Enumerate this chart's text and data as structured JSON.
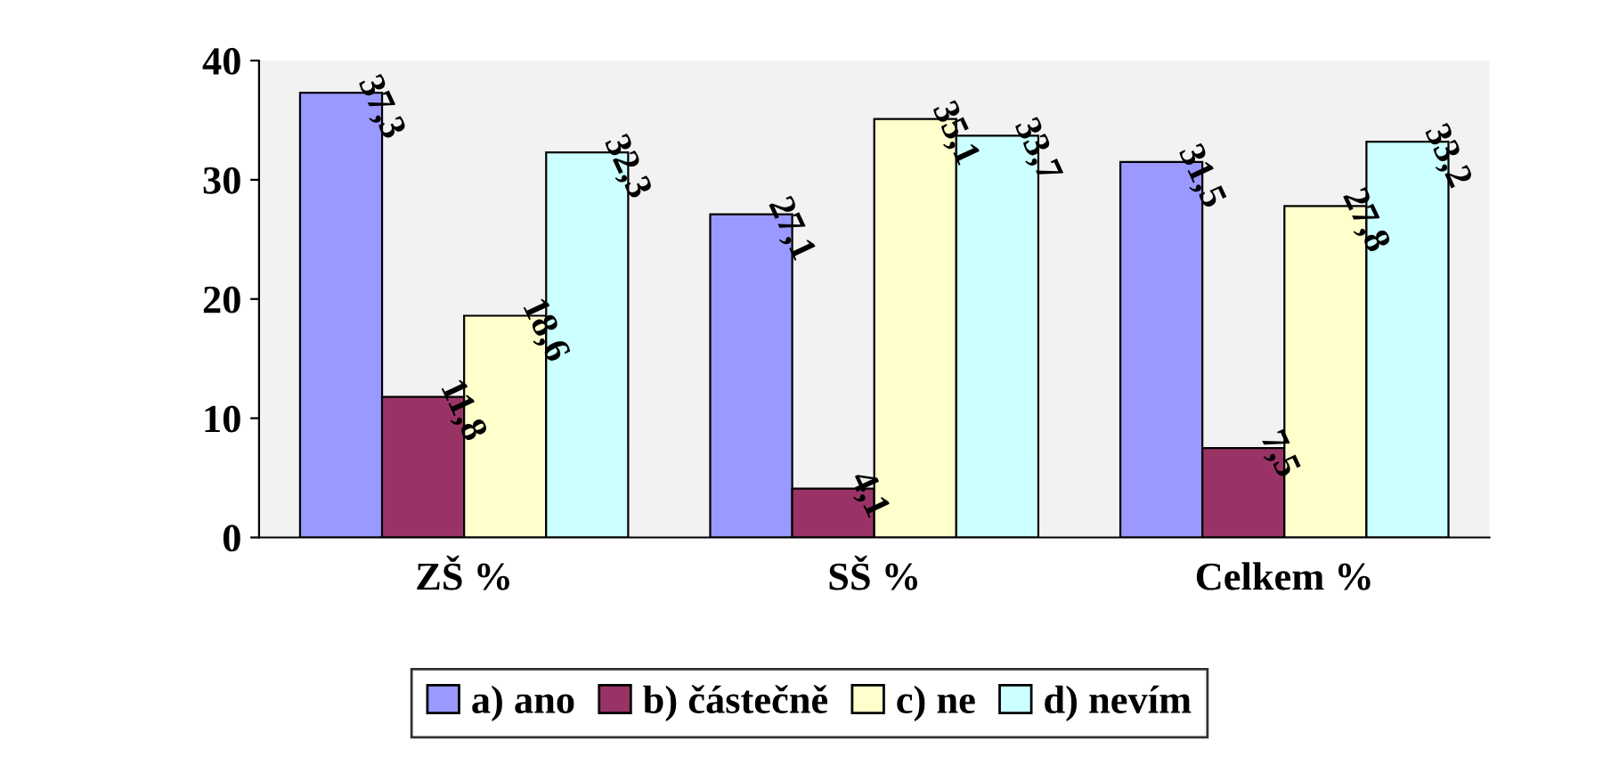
{
  "chart_data": {
    "type": "bar",
    "categories": [
      "ZŠ %",
      "SŠ %",
      "Celkem %"
    ],
    "series": [
      {
        "name": "a) ano",
        "color": "#9999ff",
        "values": [
          37.3,
          27.1,
          31.5
        ],
        "value_labels": [
          "37,3",
          "27,1",
          "31,5"
        ]
      },
      {
        "name": "b) částečně",
        "color": "#993366",
        "values": [
          11.8,
          4.1,
          7.5
        ],
        "value_labels": [
          "11,8",
          "4,1",
          "7,5"
        ]
      },
      {
        "name": "c) ne",
        "color": "#ffffcc",
        "values": [
          18.6,
          35.1,
          27.8
        ],
        "value_labels": [
          "18,6",
          "35,1",
          "27,8"
        ]
      },
      {
        "name": "d) nevím",
        "color": "#ccffff",
        "values": [
          32.3,
          33.7,
          33.2
        ],
        "value_labels": [
          "32,3",
          "33,7",
          "33,2"
        ]
      }
    ],
    "ylim": [
      0,
      40
    ],
    "yticks": [
      0,
      10,
      20,
      30,
      40
    ],
    "grid": false,
    "legend": "bottom"
  }
}
